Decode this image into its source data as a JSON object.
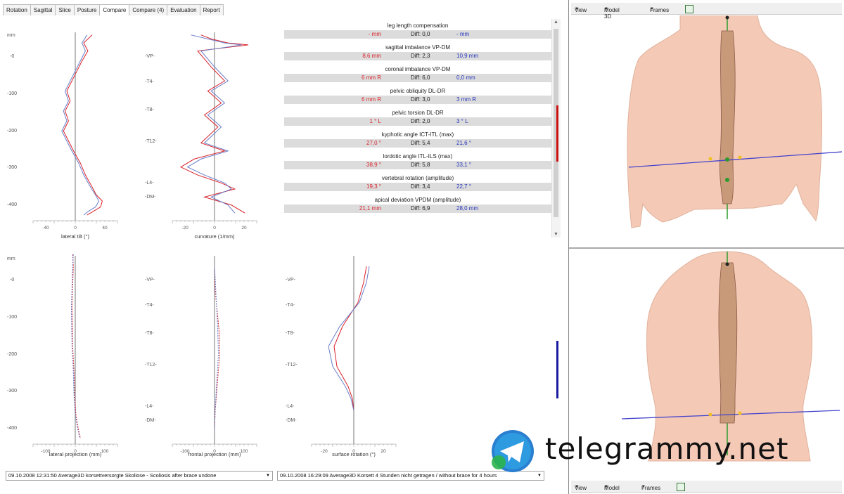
{
  "tabs": [
    "Rotation",
    "Sagittal",
    "Slice",
    "Posture",
    "Compare",
    "Compare (4)",
    "Evaluation",
    "Report"
  ],
  "active_tab": "Compare",
  "axis_unit": "mm",
  "level_labels": [
    "-VP-",
    "-T4-",
    "-T8-",
    "-T12-",
    "-L4-",
    "-DM-"
  ],
  "depth_ticks": [
    "-0",
    "-100",
    "-200",
    "-300",
    "-400"
  ],
  "plots": {
    "lateral_tilt": {
      "xlabel": "lateral tilt (°)",
      "ticks": [
        "-40",
        "0",
        "40"
      ]
    },
    "curvature": {
      "xlabel": "curvature (1/mm)",
      "ticks": [
        "-20",
        "0",
        "20"
      ]
    },
    "lateral_projection": {
      "xlabel": "lateral projection (mm)",
      "ticks": [
        "-100",
        "0",
        "100"
      ]
    },
    "frontal_projection": {
      "xlabel": "frontal projection (mm)",
      "ticks": [
        "-100",
        "0",
        "100"
      ]
    },
    "surface_rotation": {
      "xlabel": "surface rotation (°)",
      "ticks": [
        "-20",
        "0",
        "20"
      ]
    }
  },
  "chart_data": [
    {
      "type": "line",
      "title": "",
      "xlabel": "lateral tilt (°)",
      "ylabel": "mm",
      "xlim": [
        -50,
        50
      ],
      "ylim": [
        -30,
        430
      ],
      "series": [
        {
          "name": "",
          "color": "#d9222a",
          "x": [
            20,
            10,
            15,
            8,
            2,
            -4,
            -10,
            -6,
            -12,
            -8,
            -14,
            -8,
            -2,
            6,
            12,
            16,
            20,
            25,
            32,
            30,
            22,
            14
          ],
          "y": [
            -20,
            0,
            20,
            45,
            70,
            95,
            120,
            145,
            170,
            195,
            220,
            245,
            270,
            300,
            330,
            345,
            360,
            380,
            395,
            410,
            420,
            430
          ]
        },
        {
          "name": "",
          "color": "#6a7fc9",
          "x": [
            14,
            8,
            12,
            6,
            0,
            -6,
            -12,
            -8,
            -14,
            -10,
            -16,
            -10,
            -4,
            4,
            10,
            14,
            18,
            24,
            28,
            24,
            16,
            10
          ],
          "y": [
            -20,
            0,
            20,
            45,
            70,
            95,
            120,
            145,
            170,
            195,
            220,
            245,
            270,
            300,
            330,
            345,
            360,
            380,
            395,
            410,
            420,
            430
          ]
        }
      ]
    },
    {
      "type": "line",
      "title": "",
      "xlabel": "curvature (1/mm)",
      "ylabel": "",
      "xlim": [
        -25,
        25
      ],
      "ylim": [
        -30,
        430
      ],
      "series": [
        {
          "name": "",
          "color": "#d9222a",
          "x": [
            -8,
            -2,
            8,
            20,
            -10,
            -2,
            6,
            -4,
            4,
            -6,
            2,
            -8,
            6,
            -12,
            -20,
            -10,
            4,
            12,
            -6,
            10,
            18
          ],
          "y": [
            -20,
            -10,
            0,
            5,
            20,
            60,
            95,
            120,
            150,
            180,
            210,
            250,
            270,
            290,
            310,
            330,
            350,
            365,
            385,
            405,
            425
          ]
        },
        {
          "name": "",
          "color": "#6a7fc9",
          "x": [
            -14,
            -4,
            6,
            16,
            -8,
            0,
            8,
            -2,
            6,
            -4,
            4,
            -6,
            8,
            -8,
            -16,
            -6,
            6,
            10,
            -2,
            8,
            12
          ],
          "y": [
            -20,
            -10,
            0,
            5,
            20,
            60,
            95,
            120,
            150,
            180,
            210,
            250,
            270,
            290,
            310,
            330,
            350,
            365,
            385,
            405,
            425
          ]
        }
      ]
    },
    {
      "type": "line",
      "title": "",
      "xlabel": "lateral projection (mm)",
      "ylabel": "mm",
      "xlim": [
        -130,
        130
      ],
      "ylim": [
        -30,
        430
      ],
      "series": [
        {
          "name": "",
          "color": "#d9222a",
          "x": [
            -8,
            -6,
            -10,
            -8,
            -4,
            -2,
            2,
            8,
            16
          ],
          "y": [
            -30,
            0,
            100,
            200,
            260,
            320,
            370,
            400,
            430
          ]
        },
        {
          "name": "",
          "color": "#6a7fc9",
          "x": [
            -6,
            -8,
            -12,
            -10,
            -6,
            -4,
            0,
            6,
            14
          ],
          "y": [
            -30,
            0,
            100,
            200,
            260,
            320,
            370,
            400,
            430
          ]
        }
      ]
    },
    {
      "type": "line",
      "title": "",
      "xlabel": "frontal projection (mm)",
      "ylabel": "",
      "xlim": [
        -130,
        130
      ],
      "ylim": [
        -30,
        430
      ],
      "series": [
        {
          "name": "",
          "color": "#d9222a",
          "x": [
            0,
            2,
            14,
            16,
            8,
            2,
            0
          ],
          "y": [
            0,
            60,
            160,
            220,
            300,
            360,
            410
          ]
        },
        {
          "name": "",
          "color": "#6a7fc9",
          "x": [
            0,
            4,
            10,
            12,
            6,
            2,
            0
          ],
          "y": [
            0,
            60,
            160,
            220,
            300,
            360,
            410
          ]
        }
      ]
    },
    {
      "type": "line",
      "title": "",
      "xlabel": "surface rotation (°)",
      "ylabel": "",
      "xlim": [
        -30,
        30
      ],
      "ylim": [
        -30,
        430
      ],
      "series": [
        {
          "name": "",
          "color": "#d9222a",
          "x": [
            9,
            7,
            3,
            -8,
            -14,
            -12,
            -4,
            -1,
            0
          ],
          "y": [
            0,
            40,
            90,
            150,
            200,
            250,
            300,
            330,
            360
          ]
        },
        {
          "name": "",
          "color": "#6a7fc9",
          "x": [
            11,
            9,
            4,
            -10,
            -18,
            -15,
            -6,
            -2,
            0
          ],
          "y": [
            0,
            40,
            90,
            150,
            200,
            250,
            300,
            330,
            360
          ]
        }
      ]
    }
  ],
  "metrics": [
    {
      "title": "leg length compensation",
      "left": "- mm",
      "diff": "Diff: 0,0",
      "right": "- mm"
    },
    {
      "title": "sagittal imbalance VP-DM",
      "left": "8,6 mm",
      "diff": "Diff: 2,3",
      "right": "10,9 mm"
    },
    {
      "title": "coronal imbalance VP-DM",
      "left": "6 mm  R",
      "diff": "Diff: 6,0",
      "right": "0,0 mm"
    },
    {
      "title": "pelvic obliquity DL-DR",
      "left": "6 mm  R",
      "diff": "Diff: 3,0",
      "right": "3 mm  R"
    },
    {
      "title": "pelvic torsion DL-DR",
      "left": "1 °     L",
      "diff": "Diff: 2,0",
      "right": "3 °      L"
    },
    {
      "title": "kyphotic angle ICT-ITL (max)",
      "left": "27,0 °",
      "diff": "Diff: 5,4",
      "right": "21,6 °"
    },
    {
      "title": "lordotic angle ITL-ILS (max)",
      "left": "38,9 °",
      "diff": "Diff: 5,8",
      "right": "33,1 °"
    },
    {
      "title": "vertebral rotation (amplitude)",
      "left": "19,3 °",
      "diff": "Diff: 3,4",
      "right": "22,7 °"
    },
    {
      "title": "apical deviation VPDM (amplitude)",
      "left": "21,1 mm",
      "diff": "Diff: 6,9",
      "right": "28,0 mm"
    }
  ],
  "view_toolbar": {
    "view": "View",
    "model": "Model 3D",
    "frames": "Frames"
  },
  "view_toolbar_bottom": {
    "view": "View",
    "model": "Model",
    "frames": "Frames"
  },
  "dataset_left": "09.10.2008 12:31:50 Average3D  korsettversorgte Skoliose - Scoliosis after brace undone",
  "dataset_right": "09.10.2008 16:29:09 Average3D  Korsett 4 Stunden nicht getragen / without brace for 4 hours",
  "watermark": "telegrammy.net",
  "colors": {
    "before": "#d9222a",
    "after": "#6a7fc9",
    "skin": "#f4c9b6",
    "spine": "#c89a7a",
    "axis": "#2d9a2d",
    "plane": "#4444cc"
  }
}
